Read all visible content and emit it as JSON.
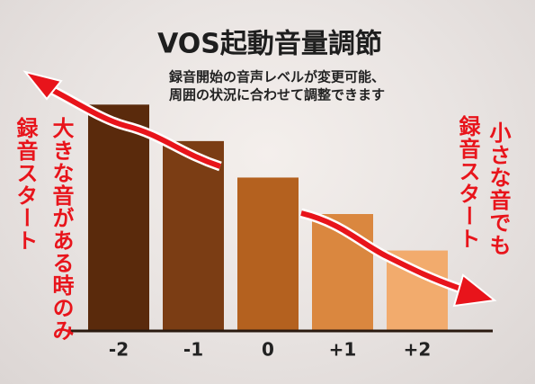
{
  "chart_data": {
    "type": "bar",
    "title": "VOS起動音量調節",
    "subtitle": [
      "録音開始の音声レベルが変更可能、",
      "周囲の状況に合わせて調整できます"
    ],
    "categories": [
      "-2",
      "-1",
      "0",
      "+1",
      "+2"
    ],
    "values": [
      242,
      203,
      164,
      125,
      86
    ],
    "colors": [
      "#5a2a0c",
      "#7b3d14",
      "#b4611f",
      "#da873f",
      "#f2ab6d"
    ],
    "ylim": [
      0,
      250
    ],
    "annotations": {
      "left": [
        "大きな音がある時のみ",
        "録音スタート"
      ],
      "right": [
        "小さな音でも",
        "録音スタート"
      ]
    }
  }
}
